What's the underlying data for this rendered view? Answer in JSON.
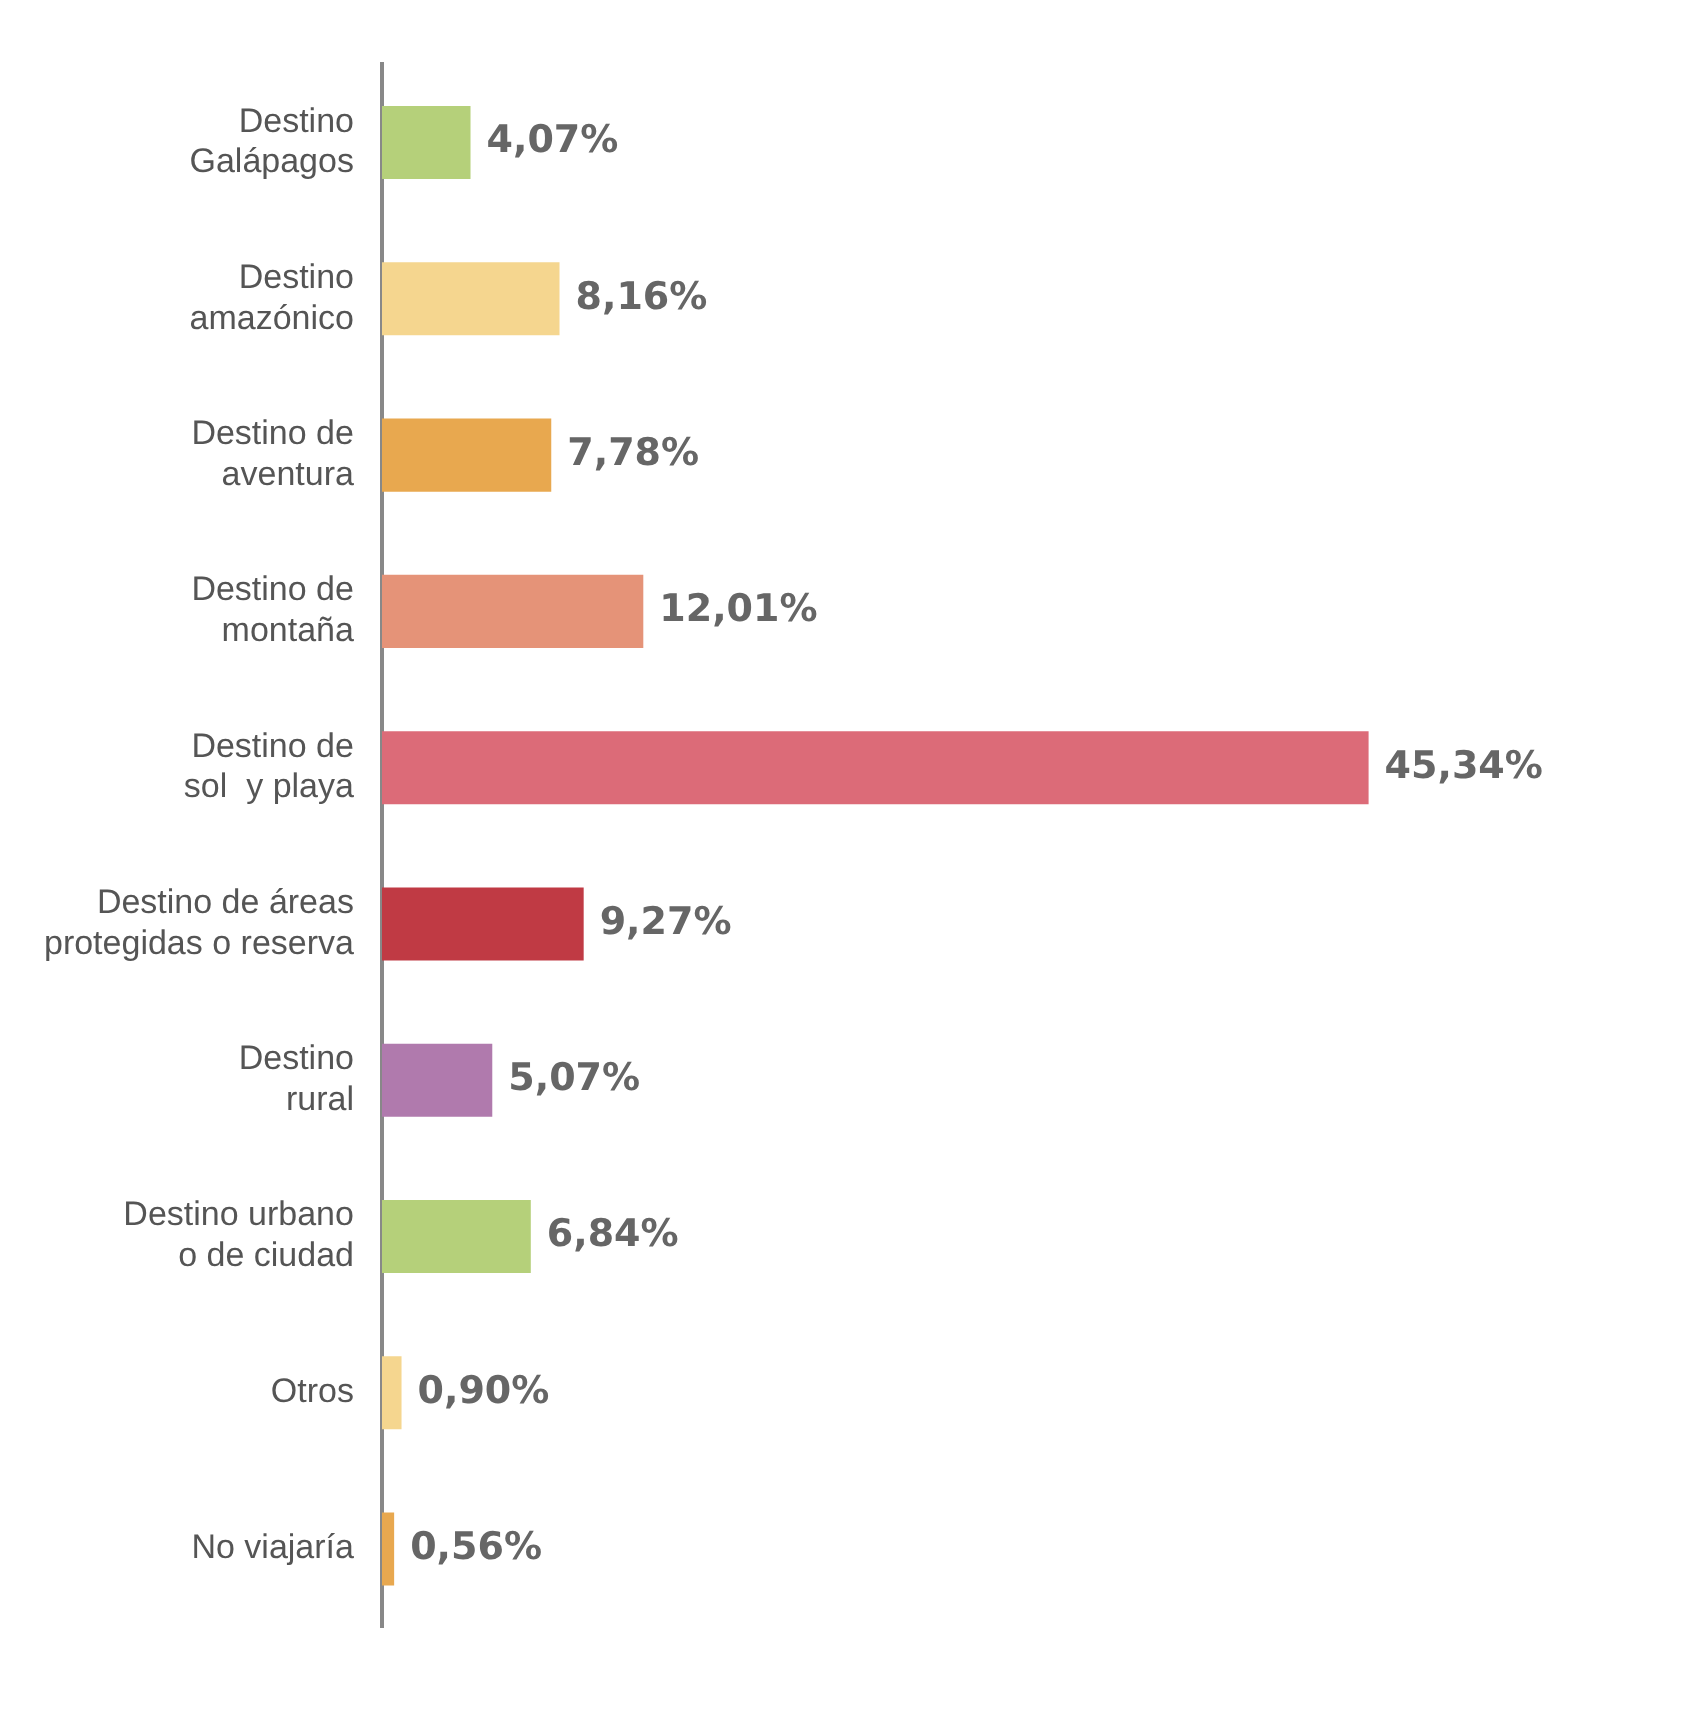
{
  "chart_data": {
    "type": "bar",
    "orientation": "horizontal",
    "categories": [
      "Destino\nGalápagos",
      "Destino\namazónico",
      "Destino de\naventura",
      "Destino de\nmontaña",
      "Destino de\nsol  y playa",
      "Destino de áreas\nprotegidas o reserva",
      "Destino\nrural",
      "Destino urbano\no de ciudad",
      "Otros",
      "No viajaría"
    ],
    "values": [
      4.07,
      8.16,
      7.78,
      12.01,
      45.34,
      9.27,
      5.07,
      6.84,
      0.9,
      0.56
    ],
    "value_labels": [
      "4,07%",
      "8,16%",
      "7,78%",
      "12,01%",
      "45,34%",
      "9,27%",
      "5,07%",
      "6,84%",
      "0,90%",
      "0,56%"
    ],
    "colors": [
      "#b5d07a",
      "#f5d68f",
      "#e8a84f",
      "#e59378",
      "#dc6b78",
      "#c03a44",
      "#b07aad",
      "#b5d07a",
      "#f5d68f",
      "#e8a84f"
    ]
  }
}
